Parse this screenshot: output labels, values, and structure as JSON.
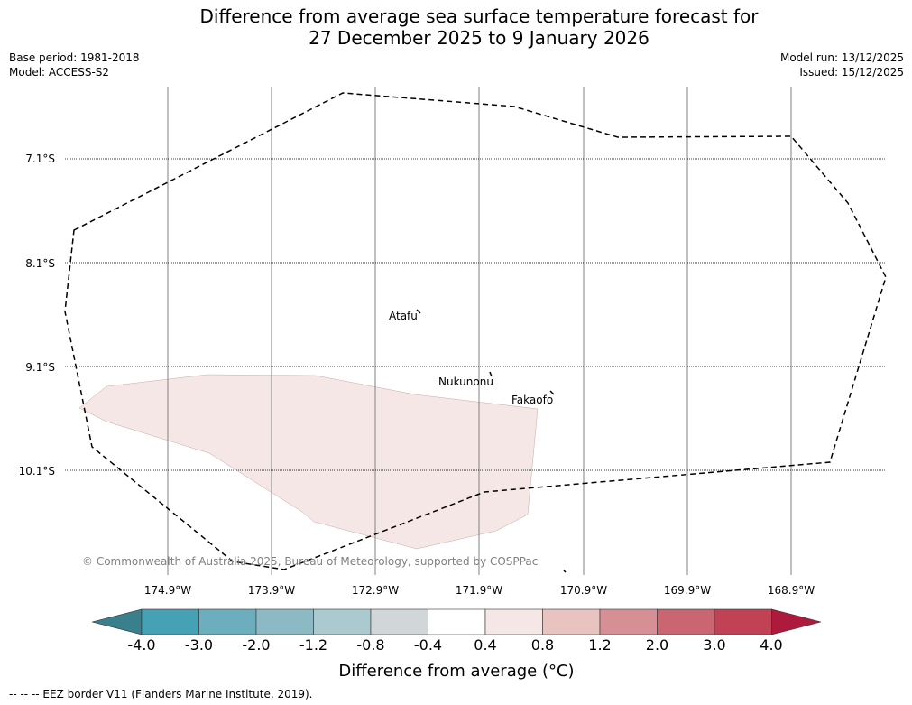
{
  "title_line1": "Difference from average sea surface temperature forecast for",
  "title_line2": "27 December 2025 to 9 January 2026",
  "base_period": "Base period: 1981-2018",
  "model": "Model: ACCESS-S2",
  "model_run": "Model run: 13/12/2025",
  "issued": "Issued: 15/12/2025",
  "lat_labels": [
    "7.1°S",
    "8.1°S",
    "9.1°S",
    "10.1°S"
  ],
  "lon_labels": [
    "174.9°W",
    "173.9°W",
    "172.9°W",
    "171.9°W",
    "170.9°W",
    "169.9°W",
    "168.9°W"
  ],
  "places": [
    {
      "name": "Atafu"
    },
    {
      "name": "Nukunonu"
    },
    {
      "name": "Fakaofo"
    }
  ],
  "copyright": "© Commonwealth of Australia 2025, Bureau of Meteorology, supported by COSPPac",
  "colorbar": {
    "labels": [
      "-4.0",
      "-3.0",
      "-2.0",
      "-1.2",
      "-0.8",
      "-0.4",
      "0.4",
      "0.8",
      "1.2",
      "2.0",
      "3.0",
      "4.0"
    ],
    "colors": [
      "#3a7f8c",
      "#44a2b4",
      "#6caebe",
      "#8cbac4",
      "#aacacf",
      "#d1d7d9",
      "#ffffff",
      "#f4e7e6",
      "#e8c3bf",
      "#d78f96",
      "#ca6672",
      "#c04254",
      "#ad1a3c"
    ],
    "label_title": "Difference from average (",
    "label_unit": "°C",
    "label_close": ")"
  },
  "anomaly_region_color": "#f4e7e6",
  "footer": "--  --  -- EEZ border V11 (Flanders Marine Institute, 2019)."
}
